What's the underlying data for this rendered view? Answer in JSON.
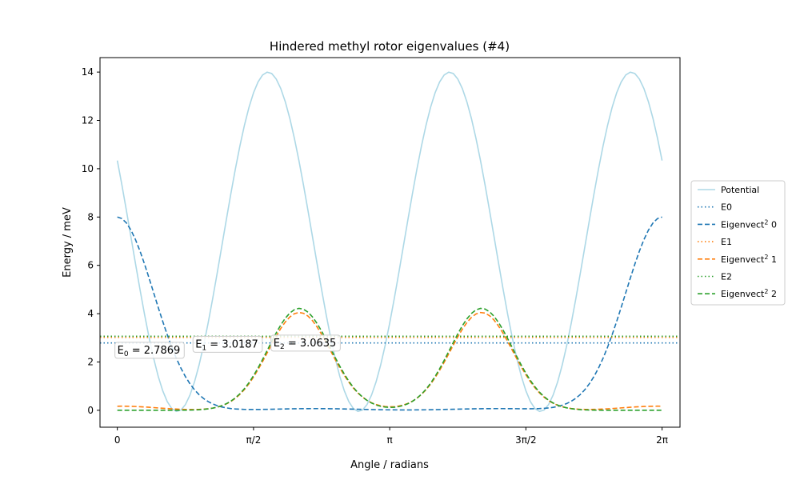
{
  "chart_data": {
    "type": "line",
    "title": "Hindered methyl rotor eigenvalues (#4)",
    "xlabel": "Angle / radians",
    "ylabel": "Energy / meV",
    "xlim": [
      -0.2,
      6.49
    ],
    "ylim": [
      -0.7,
      14.6
    ],
    "grid": false,
    "legend_position": "outside-right",
    "x_ticks": [
      {
        "value": 0,
        "label": "0"
      },
      {
        "value": 1.5708,
        "label": "π/2"
      },
      {
        "value": 3.1416,
        "label": "π"
      },
      {
        "value": 4.7124,
        "label": "3π/2"
      },
      {
        "value": 6.2832,
        "label": "2π"
      }
    ],
    "y_ticks": [
      0,
      2,
      4,
      6,
      8,
      10,
      12,
      14
    ],
    "series": [
      {
        "name": "Potential",
        "kind": "potential",
        "amplitude": 14.0,
        "min": -0.05,
        "period_multiplier": 3,
        "phase": 0.69,
        "color": "#add8e6",
        "style": "solid"
      },
      {
        "name": "E0",
        "kind": "level",
        "value": 2.7869,
        "color": "#1f77b4",
        "style": "dotted"
      },
      {
        "name": "Eigenvect² 0",
        "kind": "wavefunction",
        "peaks": [
          {
            "center": 0,
            "height": 8.0,
            "width": 0.42
          },
          {
            "center": 6.2832,
            "height": 8.0,
            "width": 0.42
          },
          {
            "center": 2.27,
            "height": 0.07,
            "width": 0.5
          },
          {
            "center": 4.38,
            "height": 0.07,
            "width": 0.5
          }
        ],
        "color": "#1f77b4",
        "style": "dashed"
      },
      {
        "name": "E1",
        "kind": "level",
        "value": 3.0187,
        "color": "#ff7f0e",
        "style": "dotted"
      },
      {
        "name": "Eigenvect² 1",
        "kind": "wavefunction",
        "peaks": [
          {
            "center": 2.1,
            "height": 4.05,
            "width": 0.36
          },
          {
            "center": 4.2,
            "height": 4.05,
            "width": 0.36
          },
          {
            "center": 0.05,
            "height": 0.17,
            "width": 0.4
          },
          {
            "center": 6.23,
            "height": 0.17,
            "width": 0.4
          },
          {
            "center": 3.14,
            "height": 0.03,
            "width": 0.3
          }
        ],
        "color": "#ff7f0e",
        "style": "dashed"
      },
      {
        "name": "E2",
        "kind": "level",
        "value": 3.0635,
        "color": "#2ca02c",
        "style": "dotted"
      },
      {
        "name": "Eigenvect² 2",
        "kind": "wavefunction",
        "peaks": [
          {
            "center": 2.1,
            "height": 4.22,
            "width": 0.36
          },
          {
            "center": 4.2,
            "height": 4.22,
            "width": 0.36
          }
        ],
        "color": "#2ca02c",
        "style": "dashed"
      }
    ],
    "legend": [
      {
        "label": "Potential",
        "sup": "",
        "suffix": ""
      },
      {
        "label": "E0",
        "sup": "",
        "suffix": ""
      },
      {
        "label": "Eigenvect",
        "sup": "2",
        "suffix": " 0"
      },
      {
        "label": "E1",
        "sup": "",
        "suffix": ""
      },
      {
        "label": "Eigenvect",
        "sup": "2",
        "suffix": " 1"
      },
      {
        "label": "E2",
        "sup": "",
        "suffix": ""
      },
      {
        "label": "Eigenvect",
        "sup": "2",
        "suffix": " 2"
      }
    ],
    "annotations": [
      {
        "prefix": "E",
        "sub": "0",
        "text": " = 2.7869",
        "x": 0,
        "y": 2.35
      },
      {
        "prefix": "E",
        "sub": "1",
        "text": " = 3.0187",
        "x": 0.9,
        "y": 2.6
      },
      {
        "prefix": "E",
        "sub": "2",
        "text": " = 3.0635",
        "x": 1.8,
        "y": 2.65
      }
    ]
  }
}
